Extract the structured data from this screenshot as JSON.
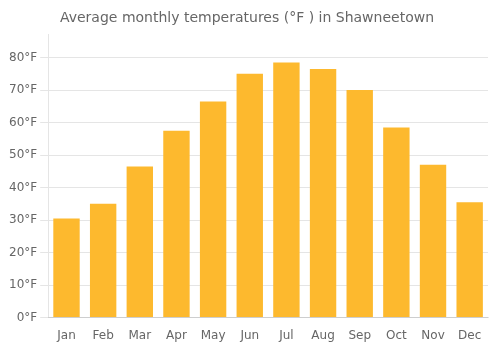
{
  "chart_data": {
    "type": "bar",
    "title": "Average monthly temperatures (°F ) in Shawneetown",
    "categories": [
      "Jan",
      "Feb",
      "Mar",
      "Apr",
      "May",
      "Jun",
      "Jul",
      "Aug",
      "Sep",
      "Oct",
      "Nov",
      "Dec"
    ],
    "values": [
      30.5,
      35.0,
      46.5,
      57.5,
      66.5,
      75.0,
      78.5,
      76.5,
      70.0,
      58.5,
      47.0,
      35.5
    ],
    "color": "#FDB92E",
    "ylim": [
      0,
      87
    ],
    "yticks": [
      {
        "value": 0,
        "label": "0°F"
      },
      {
        "value": 10,
        "label": "10°F"
      },
      {
        "value": 20,
        "label": "20°F"
      },
      {
        "value": 30,
        "label": "30°F"
      },
      {
        "value": 40,
        "label": "40°F"
      },
      {
        "value": 50,
        "label": "50°F"
      },
      {
        "value": 60,
        "label": "60°F"
      },
      {
        "value": 70,
        "label": "70°F"
      },
      {
        "value": 80,
        "label": "80°F"
      }
    ],
    "grid": true
  }
}
